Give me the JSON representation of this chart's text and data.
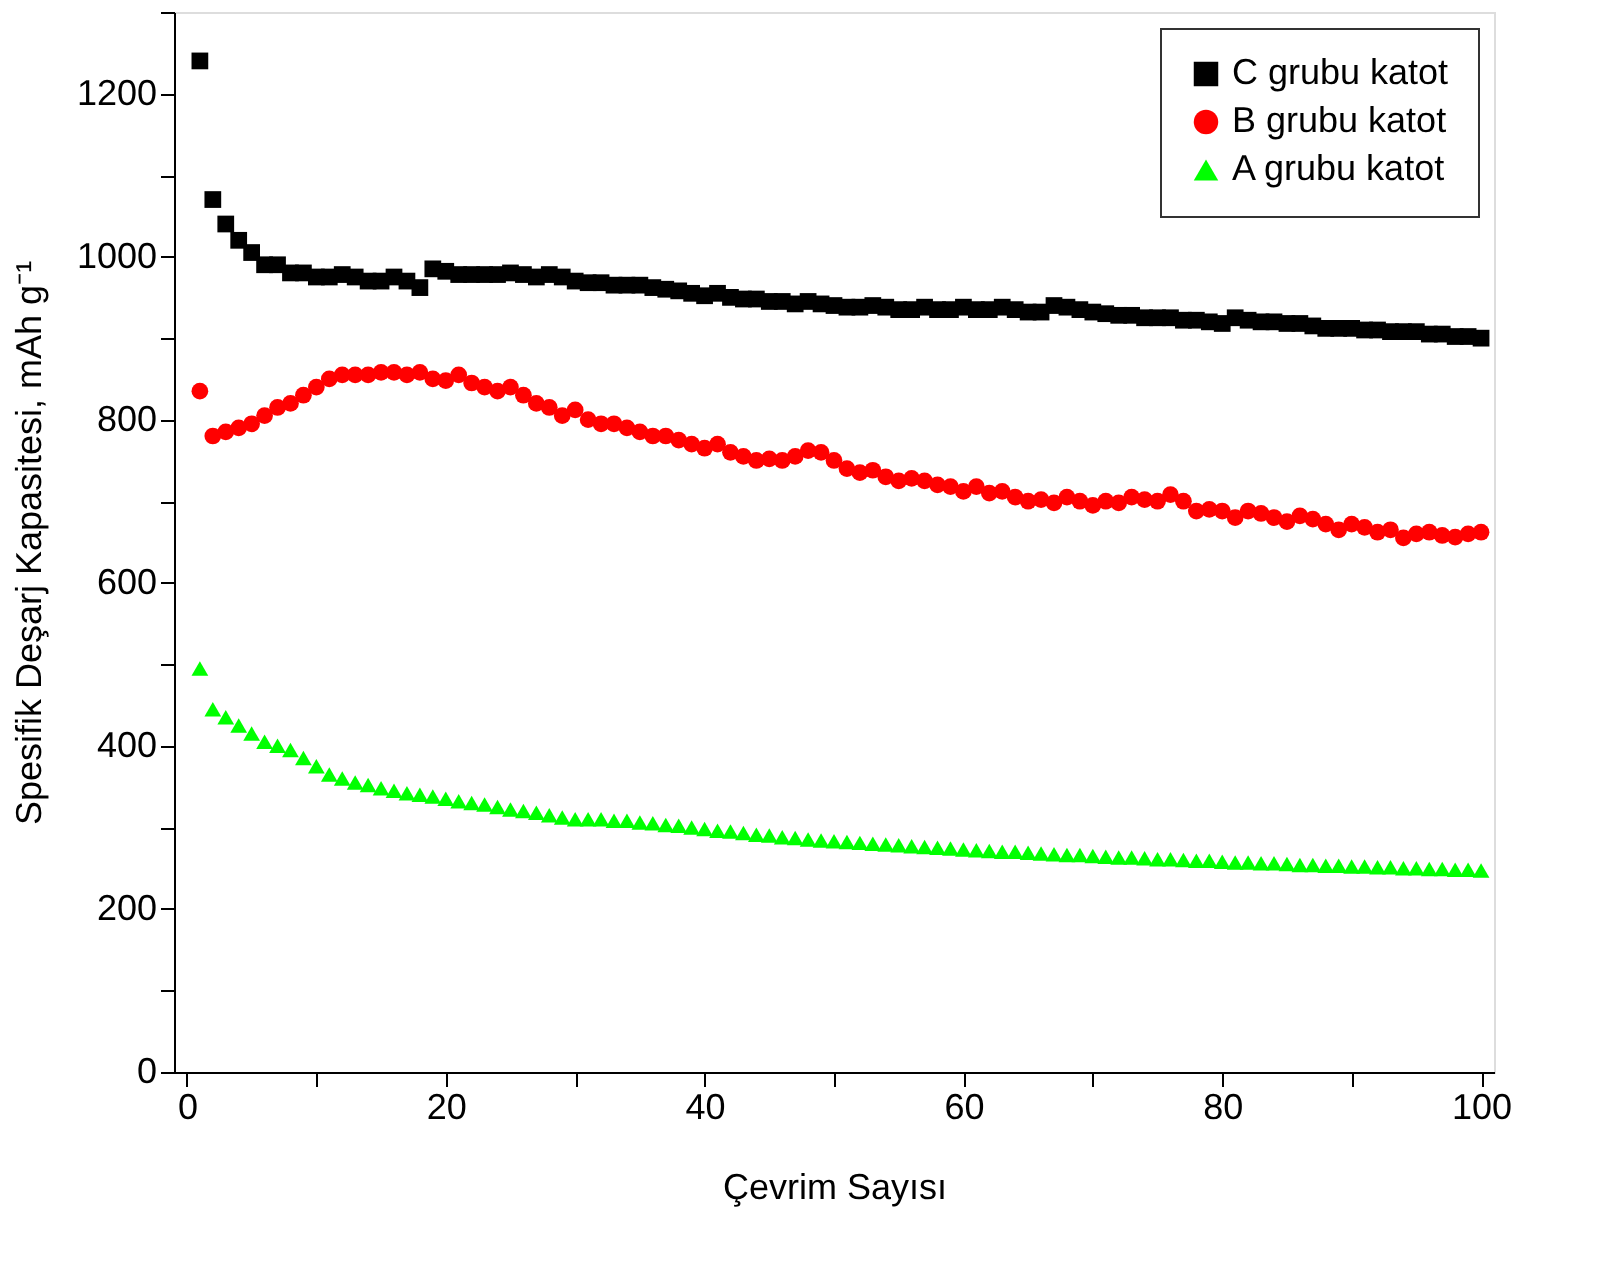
{
  "chart_data": {
    "type": "scatter",
    "xlabel": "Çevrim Sayısı",
    "ylabel": "Spesifik Deşarj Kapasitesi, mAh g⁻¹",
    "x": [
      1,
      2,
      3,
      4,
      5,
      6,
      7,
      8,
      9,
      10,
      11,
      12,
      13,
      14,
      15,
      16,
      17,
      18,
      19,
      20,
      21,
      22,
      23,
      24,
      25,
      26,
      27,
      28,
      29,
      30,
      31,
      32,
      33,
      34,
      35,
      36,
      37,
      38,
      39,
      40,
      41,
      42,
      43,
      44,
      45,
      46,
      47,
      48,
      49,
      50,
      51,
      52,
      53,
      54,
      55,
      56,
      57,
      58,
      59,
      60,
      61,
      62,
      63,
      64,
      65,
      66,
      67,
      68,
      69,
      70,
      71,
      72,
      73,
      74,
      75,
      76,
      77,
      78,
      79,
      80,
      81,
      82,
      83,
      84,
      85,
      86,
      87,
      88,
      89,
      90,
      91,
      92,
      93,
      94,
      95,
      96,
      97,
      98,
      99,
      100
    ],
    "series": [
      {
        "name": "C grubu katot",
        "color": "#000000",
        "marker": "square",
        "values": [
          1240,
          1070,
          1040,
          1020,
          1005,
          990,
          990,
          980,
          980,
          975,
          975,
          978,
          975,
          970,
          970,
          975,
          970,
          962,
          985,
          982,
          978,
          978,
          978,
          978,
          980,
          978,
          975,
          978,
          975,
          970,
          968,
          968,
          965,
          965,
          965,
          962,
          960,
          958,
          955,
          952,
          955,
          950,
          948,
          948,
          945,
          945,
          942,
          945,
          942,
          940,
          938,
          938,
          940,
          938,
          935,
          935,
          938,
          935,
          935,
          938,
          935,
          935,
          938,
          935,
          932,
          932,
          940,
          938,
          935,
          932,
          930,
          928,
          928,
          925,
          925,
          925,
          922,
          922,
          920,
          918,
          925,
          922,
          920,
          920,
          918,
          918,
          915,
          912,
          912,
          912,
          910,
          910,
          908,
          908,
          908,
          905,
          905,
          902,
          902,
          900
        ]
      },
      {
        "name": "B grubu katot",
        "color": "#ff0000",
        "marker": "circle",
        "values": [
          835,
          780,
          785,
          790,
          795,
          805,
          815,
          820,
          830,
          840,
          850,
          855,
          855,
          855,
          858,
          858,
          855,
          858,
          850,
          848,
          855,
          845,
          840,
          835,
          840,
          830,
          820,
          815,
          805,
          812,
          800,
          795,
          795,
          790,
          785,
          780,
          780,
          775,
          770,
          765,
          770,
          760,
          755,
          750,
          752,
          750,
          755,
          762,
          760,
          750,
          740,
          735,
          738,
          730,
          725,
          728,
          725,
          720,
          718,
          712,
          718,
          710,
          712,
          705,
          700,
          702,
          698,
          705,
          700,
          695,
          700,
          698,
          705,
          702,
          700,
          708,
          700,
          688,
          690,
          688,
          680,
          688,
          685,
          680,
          675,
          682,
          678,
          672,
          665,
          672,
          668,
          662,
          665,
          655,
          660,
          662,
          658,
          656,
          660,
          662
        ]
      },
      {
        "name": "A grubu katot",
        "color": "#00ff00",
        "marker": "triangle",
        "values": [
          495,
          445,
          435,
          425,
          415,
          405,
          400,
          395,
          385,
          375,
          365,
          360,
          355,
          352,
          348,
          345,
          342,
          340,
          338,
          335,
          332,
          330,
          328,
          325,
          322,
          320,
          318,
          315,
          312,
          310,
          310,
          310,
          308,
          308,
          306,
          305,
          303,
          302,
          300,
          298,
          296,
          295,
          293,
          291,
          290,
          288,
          287,
          285,
          284,
          283,
          282,
          281,
          280,
          279,
          278,
          277,
          276,
          275,
          274,
          273,
          272,
          271,
          270,
          270,
          269,
          268,
          267,
          266,
          266,
          265,
          264,
          263,
          263,
          262,
          261,
          261,
          260,
          259,
          259,
          258,
          257,
          257,
          256,
          256,
          255,
          254,
          254,
          253,
          253,
          252,
          252,
          251,
          251,
          250,
          250,
          249,
          249,
          248,
          248,
          247
        ]
      }
    ],
    "xlim": [
      -1,
      101
    ],
    "xticks": [
      0,
      {
        "value": 10,
        "label": null
      },
      20,
      {
        "value": 30,
        "label": null
      },
      40,
      {
        "value": 50,
        "label": null
      },
      60,
      {
        "value": 70,
        "label": null
      },
      80,
      {
        "value": 90,
        "label": null
      },
      100
    ],
    "ylim": [
      0,
      1300
    ],
    "yticks": [
      0,
      {
        "value": 100,
        "label": null
      },
      200,
      {
        "value": 300,
        "label": null
      },
      400,
      {
        "value": 500,
        "label": null
      },
      600,
      {
        "value": 700,
        "label": null
      },
      800,
      {
        "value": 900,
        "label": null
      },
      1000,
      {
        "value": 1100,
        "label": null
      },
      1200,
      {
        "value": 1300,
        "label": null
      }
    ],
    "grid": false,
    "legend": "top right"
  }
}
